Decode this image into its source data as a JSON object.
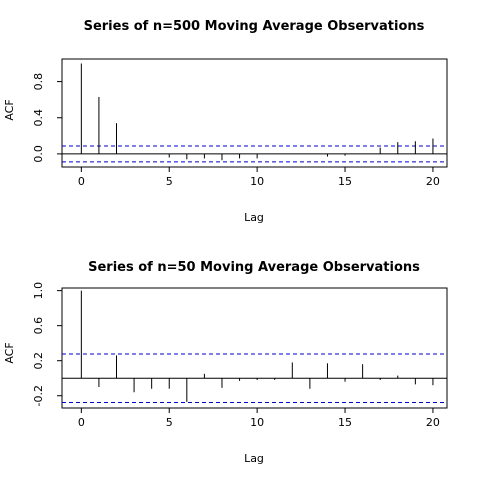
{
  "chart_data": [
    {
      "type": "bar",
      "title": "Series of n=500 Moving Average Observations",
      "xlabel": "Lag",
      "ylabel": "ACF",
      "xlim": [
        0,
        20
      ],
      "ylim": [
        -0.1,
        1.0
      ],
      "xticks": [
        0,
        5,
        10,
        15,
        20
      ],
      "yticks": [
        0.0,
        0.4,
        0.8
      ],
      "ytick_labels": [
        "0.0",
        "0.4",
        "0.8"
      ],
      "zero_line": true,
      "confidence_bound": 0.088,
      "confidence_color": "#0000cc",
      "lags": [
        0,
        1,
        2,
        3,
        4,
        5,
        6,
        7,
        8,
        9,
        10,
        11,
        12,
        13,
        14,
        15,
        16,
        17,
        18,
        19,
        20
      ],
      "acf": [
        1.0,
        0.63,
        0.34,
        0.0,
        0.0,
        -0.04,
        -0.06,
        -0.05,
        -0.07,
        -0.05,
        -0.05,
        0.0,
        0.0,
        0.0,
        -0.03,
        -0.02,
        0.0,
        0.07,
        0.13,
        0.14,
        0.17
      ]
    },
    {
      "type": "bar",
      "title": "Series of n=50 Moving Average Observations",
      "xlabel": "Lag",
      "ylabel": "ACF",
      "xlim": [
        0,
        20
      ],
      "ylim": [
        -0.3,
        1.0
      ],
      "xticks": [
        0,
        5,
        10,
        15,
        20
      ],
      "yticks": [
        -0.2,
        0.2,
        0.6,
        1.0
      ],
      "ytick_labels": [
        "-0.2",
        "0.2",
        "0.6",
        "1.0"
      ],
      "zero_line": true,
      "confidence_bound": 0.277,
      "confidence_color": "#0000cc",
      "lags": [
        0,
        1,
        2,
        3,
        4,
        5,
        6,
        7,
        8,
        9,
        10,
        11,
        12,
        13,
        14,
        15,
        16,
        17,
        18,
        19,
        20
      ],
      "acf": [
        1.0,
        -0.1,
        0.26,
        -0.16,
        -0.12,
        -0.12,
        -0.27,
        0.05,
        -0.11,
        -0.03,
        -0.02,
        -0.02,
        0.18,
        -0.12,
        0.17,
        -0.04,
        0.16,
        -0.02,
        0.03,
        -0.07,
        -0.08
      ]
    }
  ]
}
